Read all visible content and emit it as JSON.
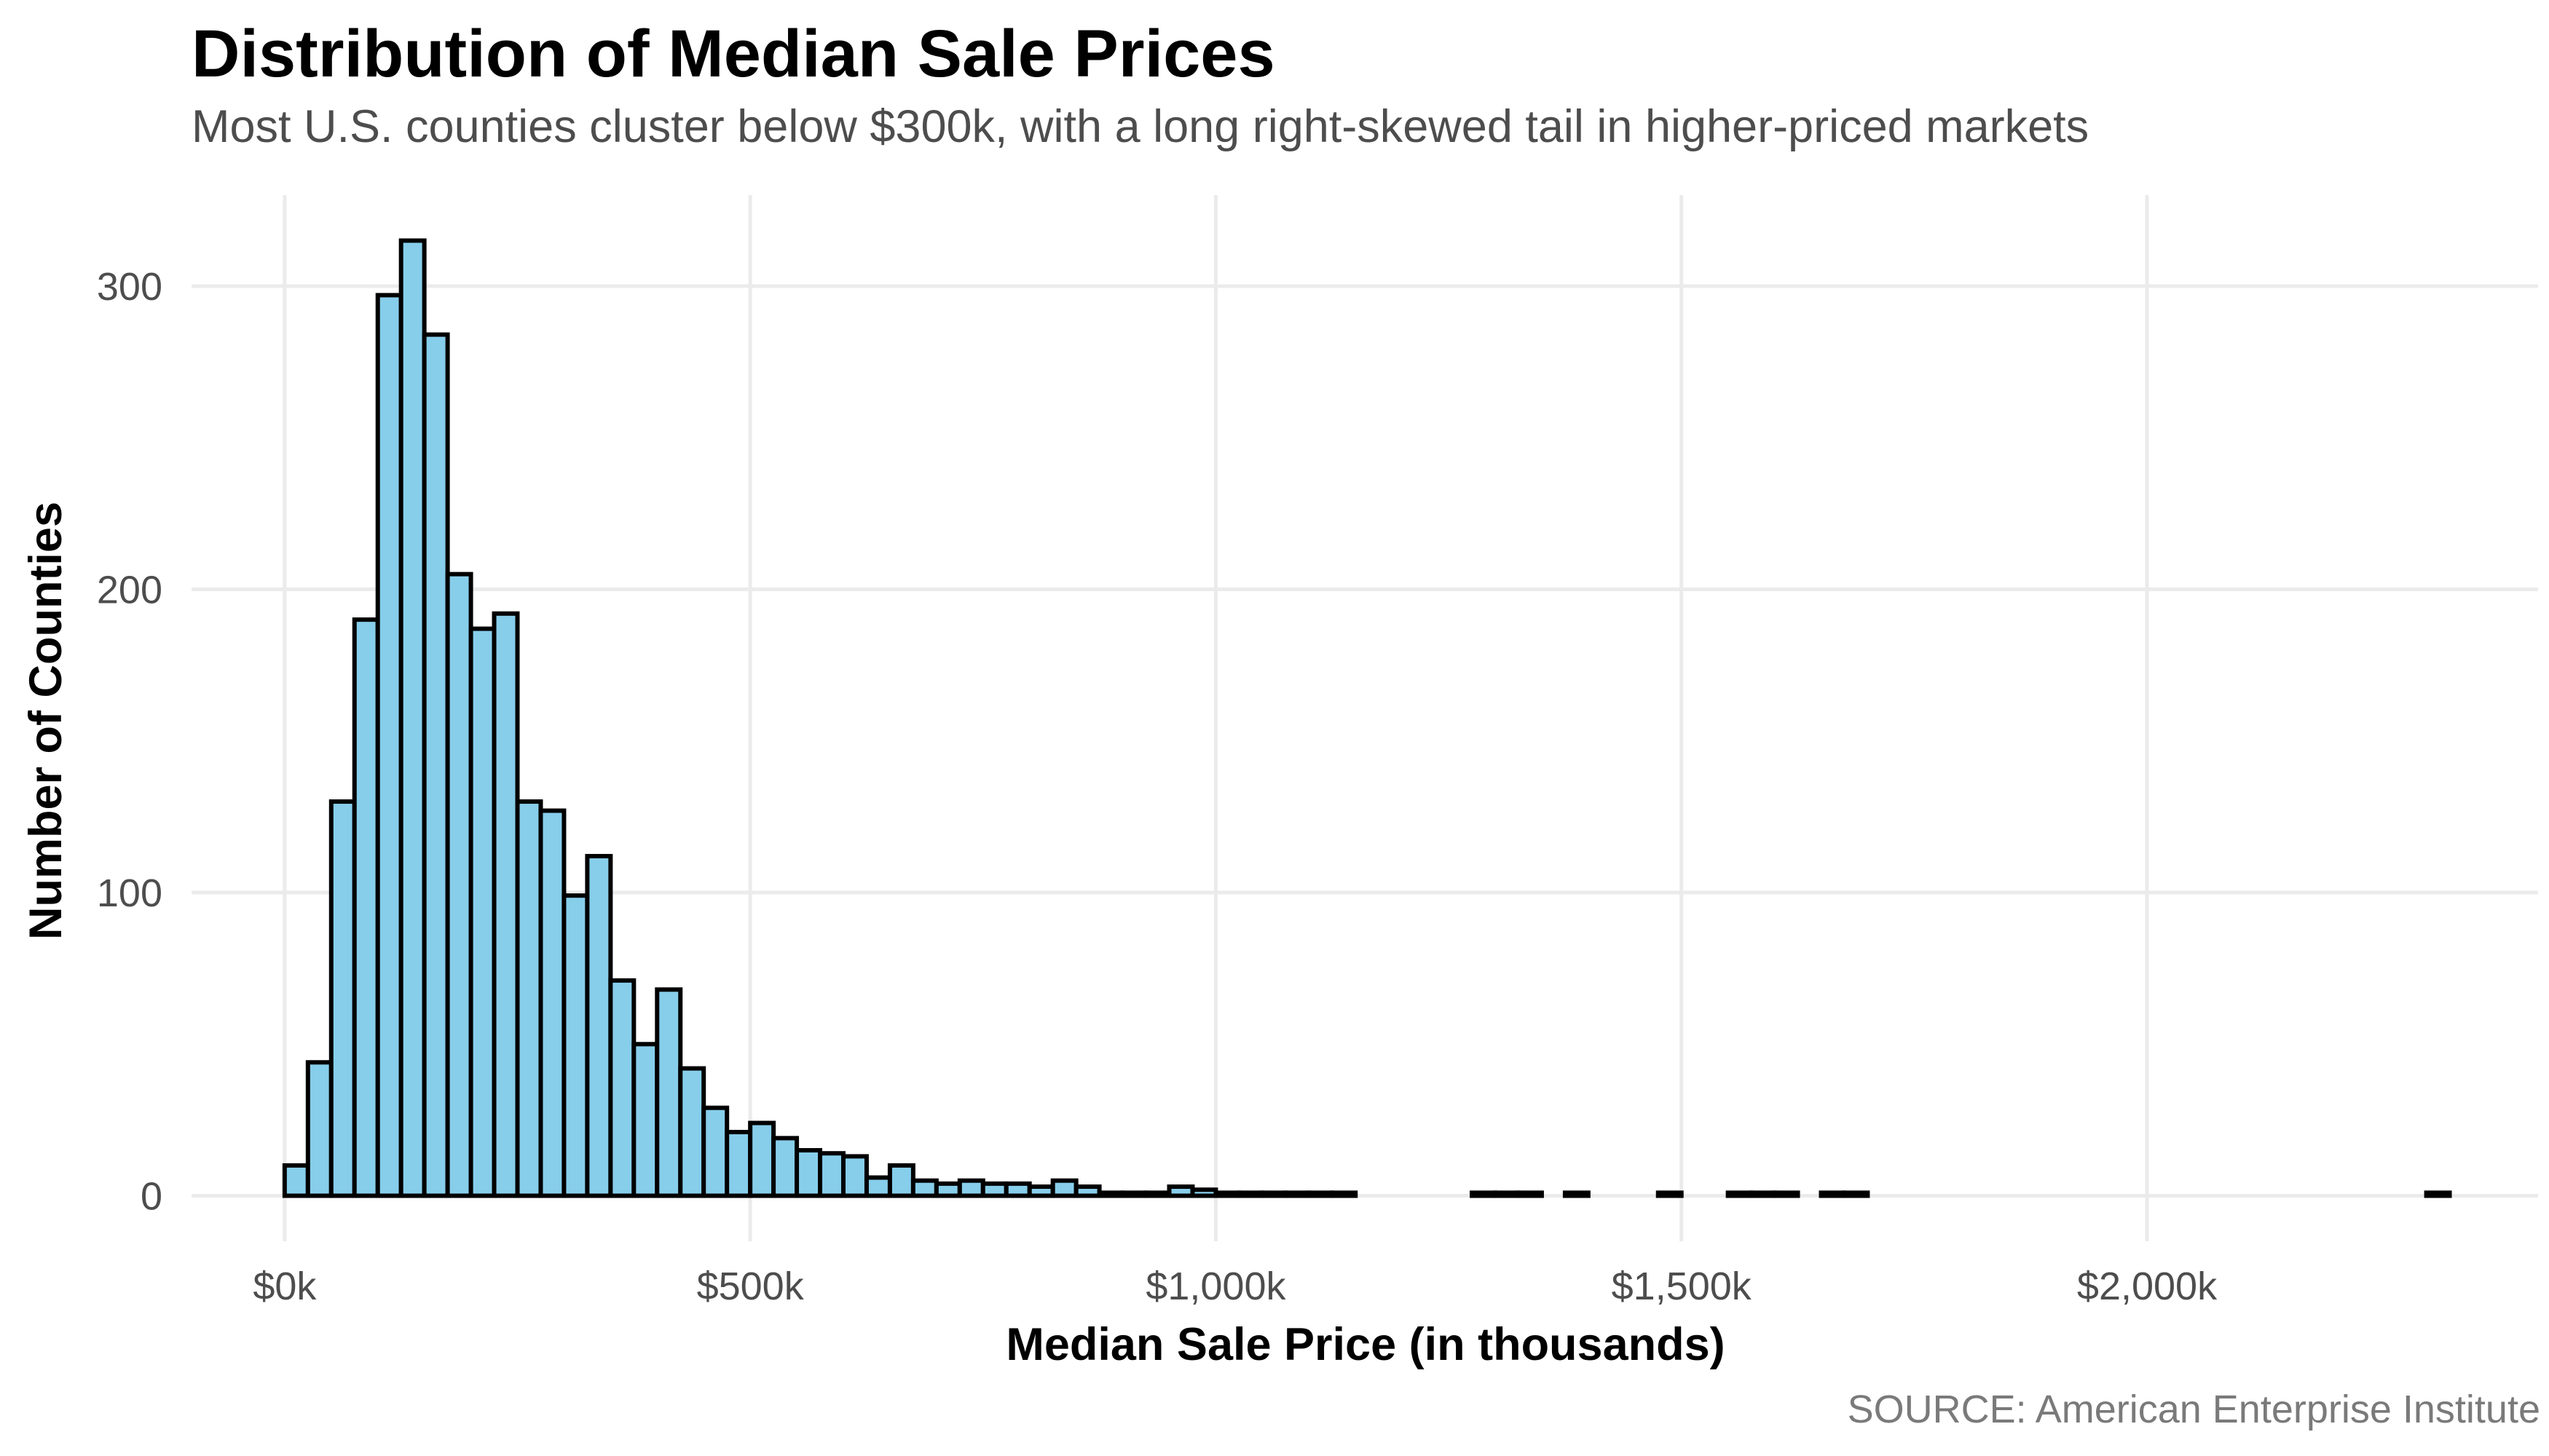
{
  "chart_data": {
    "type": "bar",
    "title": "Distribution of Median Sale Prices",
    "subtitle": "Most U.S. counties cluster below $300k, with a long right-skewed tail in higher-priced markets",
    "xlabel": "Median Sale Price (in thousands)",
    "ylabel": "Number of Counties",
    "caption": "SOURCE: American Enterprise Institute",
    "xlim": [
      -100,
      2420
    ],
    "ylim": [
      -15,
      330
    ],
    "x_ticks": [
      {
        "value": 0,
        "label": "$0k"
      },
      {
        "value": 500,
        "label": "$500k"
      },
      {
        "value": 1000,
        "label": "$1,000k"
      },
      {
        "value": 1500,
        "label": "$1,500k"
      },
      {
        "value": 2000,
        "label": "$2,000k"
      }
    ],
    "y_ticks": [
      {
        "value": 0,
        "label": "0"
      },
      {
        "value": 100,
        "label": "100"
      },
      {
        "value": 200,
        "label": "200"
      },
      {
        "value": 300,
        "label": "300"
      }
    ],
    "grid": true,
    "bin_width": 25,
    "bin_start": 0,
    "bar_fill": "#87ceeb",
    "bar_outline": "#000000",
    "bins_x_start": [
      0,
      25,
      50,
      75,
      100,
      125,
      150,
      175,
      200,
      225,
      250,
      275,
      300,
      325,
      350,
      375,
      400,
      425,
      450,
      475,
      500,
      525,
      550,
      575,
      600,
      625,
      650,
      675,
      700,
      725,
      750,
      775,
      800,
      825,
      850,
      875,
      900,
      925,
      950,
      975,
      1000,
      1025,
      1050,
      1075,
      1100,
      1125,
      1150,
      1175,
      1200,
      1225,
      1250,
      1275,
      1300,
      1325,
      1350,
      1375,
      1400,
      1425,
      1450,
      1475,
      1500,
      1525,
      1550,
      1575,
      1600,
      1625,
      1650,
      1675,
      1700,
      1725,
      1750,
      1775,
      1800,
      1825,
      1850,
      1875,
      1900,
      1925,
      1950,
      1975,
      2000,
      2025,
      2050,
      2075,
      2100,
      2125,
      2150,
      2175,
      2200,
      2225,
      2250,
      2275,
      2300
    ],
    "values": [
      10,
      44,
      130,
      190,
      297,
      315,
      284,
      205,
      187,
      192,
      130,
      127,
      99,
      112,
      71,
      50,
      68,
      42,
      29,
      21,
      24,
      19,
      15,
      14,
      13,
      6,
      10,
      5,
      4,
      5,
      4,
      4,
      3,
      5,
      3,
      1,
      1,
      1,
      3,
      2,
      1,
      1,
      1,
      1,
      1,
      1,
      0,
      0,
      0,
      0,
      0,
      1,
      1,
      1,
      0,
      1,
      0,
      0,
      0,
      1,
      0,
      0,
      1,
      1,
      1,
      0,
      1,
      1,
      0,
      0,
      0,
      0,
      0,
      0,
      0,
      0,
      0,
      0,
      0,
      0,
      0,
      0,
      0,
      0,
      0,
      0,
      0,
      0,
      0,
      0,
      0,
      0,
      1
    ]
  }
}
